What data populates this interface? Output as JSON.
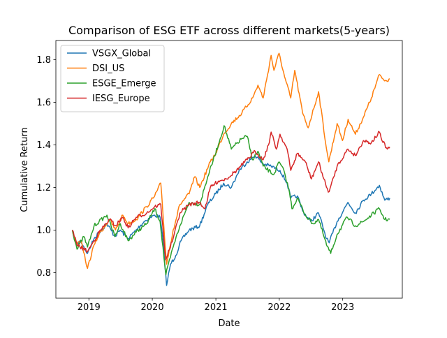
{
  "chart_data": {
    "type": "line",
    "title": "Comparison of ESG ETF across different markets(5-years)",
    "xlabel": "Date",
    "ylabel": "Cumulative Return",
    "xlim": [
      "2018-06-25",
      "2023-12-10"
    ],
    "ylim": [
      0.68,
      1.89
    ],
    "grid": false,
    "legend_position": "top-left",
    "x_ticks": [
      {
        "date": "2019-01-01",
        "label": "2019"
      },
      {
        "date": "2020-01-01",
        "label": "2020"
      },
      {
        "date": "2021-01-01",
        "label": "2021"
      },
      {
        "date": "2022-01-01",
        "label": "2022"
      },
      {
        "date": "2023-01-01",
        "label": "2023"
      }
    ],
    "y_ticks": [
      {
        "value": 0.8,
        "label": "0.8"
      },
      {
        "value": 1.0,
        "label": "1.0"
      },
      {
        "value": 1.2,
        "label": "1.2"
      },
      {
        "value": 1.4,
        "label": "1.4"
      },
      {
        "value": 1.6,
        "label": "1.6"
      },
      {
        "value": 1.8,
        "label": "1.8"
      }
    ],
    "series": [
      {
        "name": "VSGX_Global",
        "color": "#1f77b4",
        "points": [
          [
            "2018-09-28",
            1.0
          ],
          [
            "2018-10-20",
            0.93
          ],
          [
            "2018-11-15",
            0.95
          ],
          [
            "2018-12-24",
            0.89
          ],
          [
            "2019-01-31",
            0.96
          ],
          [
            "2019-03-01",
            0.99
          ],
          [
            "2019-04-15",
            1.03
          ],
          [
            "2019-05-30",
            0.97
          ],
          [
            "2019-06-30",
            1.0
          ],
          [
            "2019-08-15",
            0.96
          ],
          [
            "2019-09-30",
            1.0
          ],
          [
            "2019-11-15",
            1.04
          ],
          [
            "2020-01-15",
            1.07
          ],
          [
            "2020-02-15",
            1.06
          ],
          [
            "2020-02-28",
            0.98
          ],
          [
            "2020-03-23",
            0.74
          ],
          [
            "2020-04-15",
            0.84
          ],
          [
            "2020-05-15",
            0.88
          ],
          [
            "2020-06-15",
            0.95
          ],
          [
            "2020-07-31",
            1.0
          ],
          [
            "2020-09-30",
            1.02
          ],
          [
            "2020-11-15",
            1.12
          ],
          [
            "2020-12-31",
            1.17
          ],
          [
            "2021-02-15",
            1.22
          ],
          [
            "2021-03-31",
            1.2
          ],
          [
            "2021-05-15",
            1.28
          ],
          [
            "2021-06-30",
            1.32
          ],
          [
            "2021-08-15",
            1.35
          ],
          [
            "2021-09-30",
            1.31
          ],
          [
            "2021-11-15",
            1.3
          ],
          [
            "2022-01-05",
            1.28
          ],
          [
            "2022-02-15",
            1.22
          ],
          [
            "2022-03-08",
            1.15
          ],
          [
            "2022-04-15",
            1.16
          ],
          [
            "2022-05-15",
            1.09
          ],
          [
            "2022-06-30",
            1.04
          ],
          [
            "2022-08-15",
            1.08
          ],
          [
            "2022-09-30",
            0.96
          ],
          [
            "2022-10-15",
            0.94
          ],
          [
            "2022-11-30",
            1.04
          ],
          [
            "2023-01-31",
            1.13
          ],
          [
            "2023-03-15",
            1.08
          ],
          [
            "2023-04-30",
            1.14
          ],
          [
            "2023-06-15",
            1.17
          ],
          [
            "2023-07-31",
            1.21
          ],
          [
            "2023-08-31",
            1.14
          ],
          [
            "2023-09-29",
            1.15
          ]
        ]
      },
      {
        "name": "DSI_US",
        "color": "#ff7f0e",
        "points": [
          [
            "2018-09-28",
            1.0
          ],
          [
            "2018-10-20",
            0.93
          ],
          [
            "2018-11-15",
            0.95
          ],
          [
            "2018-12-24",
            0.82
          ],
          [
            "2019-01-31",
            0.93
          ],
          [
            "2019-03-01",
            0.98
          ],
          [
            "2019-04-30",
            1.05
          ],
          [
            "2019-06-03",
            1.0
          ],
          [
            "2019-07-15",
            1.07
          ],
          [
            "2019-08-15",
            1.03
          ],
          [
            "2019-09-30",
            1.05
          ],
          [
            "2019-11-30",
            1.11
          ],
          [
            "2020-01-15",
            1.16
          ],
          [
            "2020-02-19",
            1.22
          ],
          [
            "2020-03-23",
            0.84
          ],
          [
            "2020-04-30",
            1.0
          ],
          [
            "2020-06-08",
            1.12
          ],
          [
            "2020-07-31",
            1.17
          ],
          [
            "2020-09-01",
            1.25
          ],
          [
            "2020-09-30",
            1.2
          ],
          [
            "2020-11-30",
            1.32
          ],
          [
            "2020-12-31",
            1.36
          ],
          [
            "2021-02-15",
            1.45
          ],
          [
            "2021-03-31",
            1.5
          ],
          [
            "2021-05-31",
            1.55
          ],
          [
            "2021-07-31",
            1.62
          ],
          [
            "2021-08-31",
            1.68
          ],
          [
            "2021-09-30",
            1.62
          ],
          [
            "2021-11-15",
            1.82
          ],
          [
            "2021-12-01",
            1.75
          ],
          [
            "2021-12-31",
            1.83
          ],
          [
            "2022-01-31",
            1.72
          ],
          [
            "2022-03-08",
            1.62
          ],
          [
            "2022-03-31",
            1.75
          ],
          [
            "2022-05-15",
            1.55
          ],
          [
            "2022-06-16",
            1.48
          ],
          [
            "2022-08-15",
            1.65
          ],
          [
            "2022-09-30",
            1.38
          ],
          [
            "2022-10-13",
            1.32
          ],
          [
            "2022-11-30",
            1.5
          ],
          [
            "2022-12-31",
            1.42
          ],
          [
            "2023-02-01",
            1.52
          ],
          [
            "2023-03-15",
            1.45
          ],
          [
            "2023-04-30",
            1.53
          ],
          [
            "2023-06-15",
            1.62
          ],
          [
            "2023-07-31",
            1.73
          ],
          [
            "2023-08-31",
            1.7
          ],
          [
            "2023-09-29",
            1.71
          ]
        ]
      },
      {
        "name": "ESGE_Emerge",
        "color": "#2ca02c",
        "points": [
          [
            "2018-09-28",
            1.0
          ],
          [
            "2018-10-25",
            0.91
          ],
          [
            "2018-12-03",
            0.97
          ],
          [
            "2018-12-24",
            0.92
          ],
          [
            "2019-01-31",
            1.02
          ],
          [
            "2019-03-01",
            1.04
          ],
          [
            "2019-04-15",
            1.07
          ],
          [
            "2019-05-31",
            0.97
          ],
          [
            "2019-07-01",
            1.03
          ],
          [
            "2019-08-15",
            0.95
          ],
          [
            "2019-09-30",
            0.99
          ],
          [
            "2019-11-30",
            1.03
          ],
          [
            "2020-01-15",
            1.1
          ],
          [
            "2020-02-15",
            1.04
          ],
          [
            "2020-03-19",
            0.79
          ],
          [
            "2020-04-30",
            0.92
          ],
          [
            "2020-06-08",
            1.02
          ],
          [
            "2020-07-31",
            1.13
          ],
          [
            "2020-09-30",
            1.12
          ],
          [
            "2020-11-15",
            1.25
          ],
          [
            "2021-01-15",
            1.4
          ],
          [
            "2021-02-17",
            1.49
          ],
          [
            "2021-03-31",
            1.38
          ],
          [
            "2021-05-31",
            1.43
          ],
          [
            "2021-06-30",
            1.44
          ],
          [
            "2021-07-31",
            1.33
          ],
          [
            "2021-08-31",
            1.37
          ],
          [
            "2021-09-30",
            1.3
          ],
          [
            "2021-11-30",
            1.26
          ],
          [
            "2021-12-31",
            1.32
          ],
          [
            "2022-01-31",
            1.27
          ],
          [
            "2022-02-28",
            1.18
          ],
          [
            "2022-03-15",
            1.1
          ],
          [
            "2022-04-15",
            1.15
          ],
          [
            "2022-05-31",
            1.07
          ],
          [
            "2022-07-15",
            1.03
          ],
          [
            "2022-08-15",
            1.05
          ],
          [
            "2022-09-30",
            0.93
          ],
          [
            "2022-10-24",
            0.89
          ],
          [
            "2022-11-30",
            0.98
          ],
          [
            "2023-01-27",
            1.06
          ],
          [
            "2023-03-15",
            1.02
          ],
          [
            "2023-04-30",
            1.04
          ],
          [
            "2023-06-15",
            1.07
          ],
          [
            "2023-07-31",
            1.1
          ],
          [
            "2023-08-31",
            1.05
          ],
          [
            "2023-09-29",
            1.05
          ]
        ]
      },
      {
        "name": "IESG_Europe",
        "color": "#d62728",
        "points": [
          [
            "2018-09-28",
            1.0
          ],
          [
            "2018-10-25",
            0.93
          ],
          [
            "2018-12-24",
            0.9
          ],
          [
            "2019-01-31",
            0.95
          ],
          [
            "2019-03-01",
            0.99
          ],
          [
            "2019-04-30",
            1.05
          ],
          [
            "2019-06-03",
            1.02
          ],
          [
            "2019-07-15",
            1.06
          ],
          [
            "2019-08-15",
            1.01
          ],
          [
            "2019-09-30",
            1.06
          ],
          [
            "2019-11-30",
            1.08
          ],
          [
            "2020-01-15",
            1.11
          ],
          [
            "2020-02-19",
            1.12
          ],
          [
            "2020-03-18",
            0.86
          ],
          [
            "2020-04-30",
            0.96
          ],
          [
            "2020-06-08",
            1.08
          ],
          [
            "2020-07-31",
            1.12
          ],
          [
            "2020-09-30",
            1.13
          ],
          [
            "2020-10-30",
            1.1
          ],
          [
            "2020-11-30",
            1.2
          ],
          [
            "2021-01-15",
            1.23
          ],
          [
            "2021-02-28",
            1.24
          ],
          [
            "2021-04-30",
            1.28
          ],
          [
            "2021-06-30",
            1.33
          ],
          [
            "2021-08-15",
            1.37
          ],
          [
            "2021-09-30",
            1.33
          ],
          [
            "2021-10-31",
            1.4
          ],
          [
            "2021-11-15",
            1.46
          ],
          [
            "2021-12-15",
            1.38
          ],
          [
            "2022-01-05",
            1.45
          ],
          [
            "2022-02-15",
            1.38
          ],
          [
            "2022-03-08",
            1.28
          ],
          [
            "2022-04-15",
            1.36
          ],
          [
            "2022-05-31",
            1.32
          ],
          [
            "2022-07-05",
            1.24
          ],
          [
            "2022-08-15",
            1.32
          ],
          [
            "2022-09-30",
            1.2
          ],
          [
            "2022-10-15",
            1.18
          ],
          [
            "2022-11-30",
            1.3
          ],
          [
            "2023-01-31",
            1.38
          ],
          [
            "2023-03-15",
            1.35
          ],
          [
            "2023-04-30",
            1.42
          ],
          [
            "2023-06-15",
            1.41
          ],
          [
            "2023-07-31",
            1.46
          ],
          [
            "2023-08-15",
            1.42
          ],
          [
            "2023-09-15",
            1.38
          ],
          [
            "2023-09-29",
            1.39
          ]
        ]
      }
    ]
  }
}
